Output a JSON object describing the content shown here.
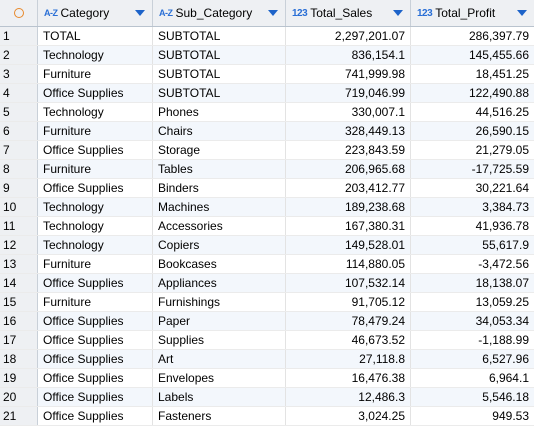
{
  "columns": [
    {
      "type_icon": "A-Z",
      "label": "Category"
    },
    {
      "type_icon": "A-Z",
      "label": "Sub_Category"
    },
    {
      "type_icon": "123",
      "label": "Total_Sales"
    },
    {
      "type_icon": "123",
      "label": "Total_Profit"
    }
  ],
  "rows": [
    {
      "n": "1",
      "category": "TOTAL",
      "sub_category": "SUBTOTAL",
      "total_sales": "2,297,201.07",
      "total_profit": "286,397.79"
    },
    {
      "n": "2",
      "category": "Technology",
      "sub_category": "SUBTOTAL",
      "total_sales": "836,154.1",
      "total_profit": "145,455.66"
    },
    {
      "n": "3",
      "category": "Furniture",
      "sub_category": "SUBTOTAL",
      "total_sales": "741,999.98",
      "total_profit": "18,451.25"
    },
    {
      "n": "4",
      "category": "Office Supplies",
      "sub_category": "SUBTOTAL",
      "total_sales": "719,046.99",
      "total_profit": "122,490.88"
    },
    {
      "n": "5",
      "category": "Technology",
      "sub_category": "Phones",
      "total_sales": "330,007.1",
      "total_profit": "44,516.25"
    },
    {
      "n": "6",
      "category": "Furniture",
      "sub_category": "Chairs",
      "total_sales": "328,449.13",
      "total_profit": "26,590.15"
    },
    {
      "n": "7",
      "category": "Office Supplies",
      "sub_category": "Storage",
      "total_sales": "223,843.59",
      "total_profit": "21,279.05"
    },
    {
      "n": "8",
      "category": "Furniture",
      "sub_category": "Tables",
      "total_sales": "206,965.68",
      "total_profit": "-17,725.59"
    },
    {
      "n": "9",
      "category": "Office Supplies",
      "sub_category": "Binders",
      "total_sales": "203,412.77",
      "total_profit": "30,221.64"
    },
    {
      "n": "10",
      "category": "Technology",
      "sub_category": "Machines",
      "total_sales": "189,238.68",
      "total_profit": "3,384.73"
    },
    {
      "n": "11",
      "category": "Technology",
      "sub_category": "Accessories",
      "total_sales": "167,380.31",
      "total_profit": "41,936.78"
    },
    {
      "n": "12",
      "category": "Technology",
      "sub_category": "Copiers",
      "total_sales": "149,528.01",
      "total_profit": "55,617.9"
    },
    {
      "n": "13",
      "category": "Furniture",
      "sub_category": "Bookcases",
      "total_sales": "114,880.05",
      "total_profit": "-3,472.56"
    },
    {
      "n": "14",
      "category": "Office Supplies",
      "sub_category": "Appliances",
      "total_sales": "107,532.14",
      "total_profit": "18,138.07"
    },
    {
      "n": "15",
      "category": "Furniture",
      "sub_category": "Furnishings",
      "total_sales": "91,705.12",
      "total_profit": "13,059.25"
    },
    {
      "n": "16",
      "category": "Office Supplies",
      "sub_category": "Paper",
      "total_sales": "78,479.24",
      "total_profit": "34,053.34"
    },
    {
      "n": "17",
      "category": "Office Supplies",
      "sub_category": "Supplies",
      "total_sales": "46,673.52",
      "total_profit": "-1,188.99"
    },
    {
      "n": "18",
      "category": "Office Supplies",
      "sub_category": "Art",
      "total_sales": "27,118.8",
      "total_profit": "6,527.96"
    },
    {
      "n": "19",
      "category": "Office Supplies",
      "sub_category": "Envelopes",
      "total_sales": "16,476.38",
      "total_profit": "6,964.1"
    },
    {
      "n": "20",
      "category": "Office Supplies",
      "sub_category": "Labels",
      "total_sales": "12,486.3",
      "total_profit": "5,546.18"
    },
    {
      "n": "21",
      "category": "Office Supplies",
      "sub_category": "Fasteners",
      "total_sales": "3,024.25",
      "total_profit": "949.53"
    }
  ]
}
